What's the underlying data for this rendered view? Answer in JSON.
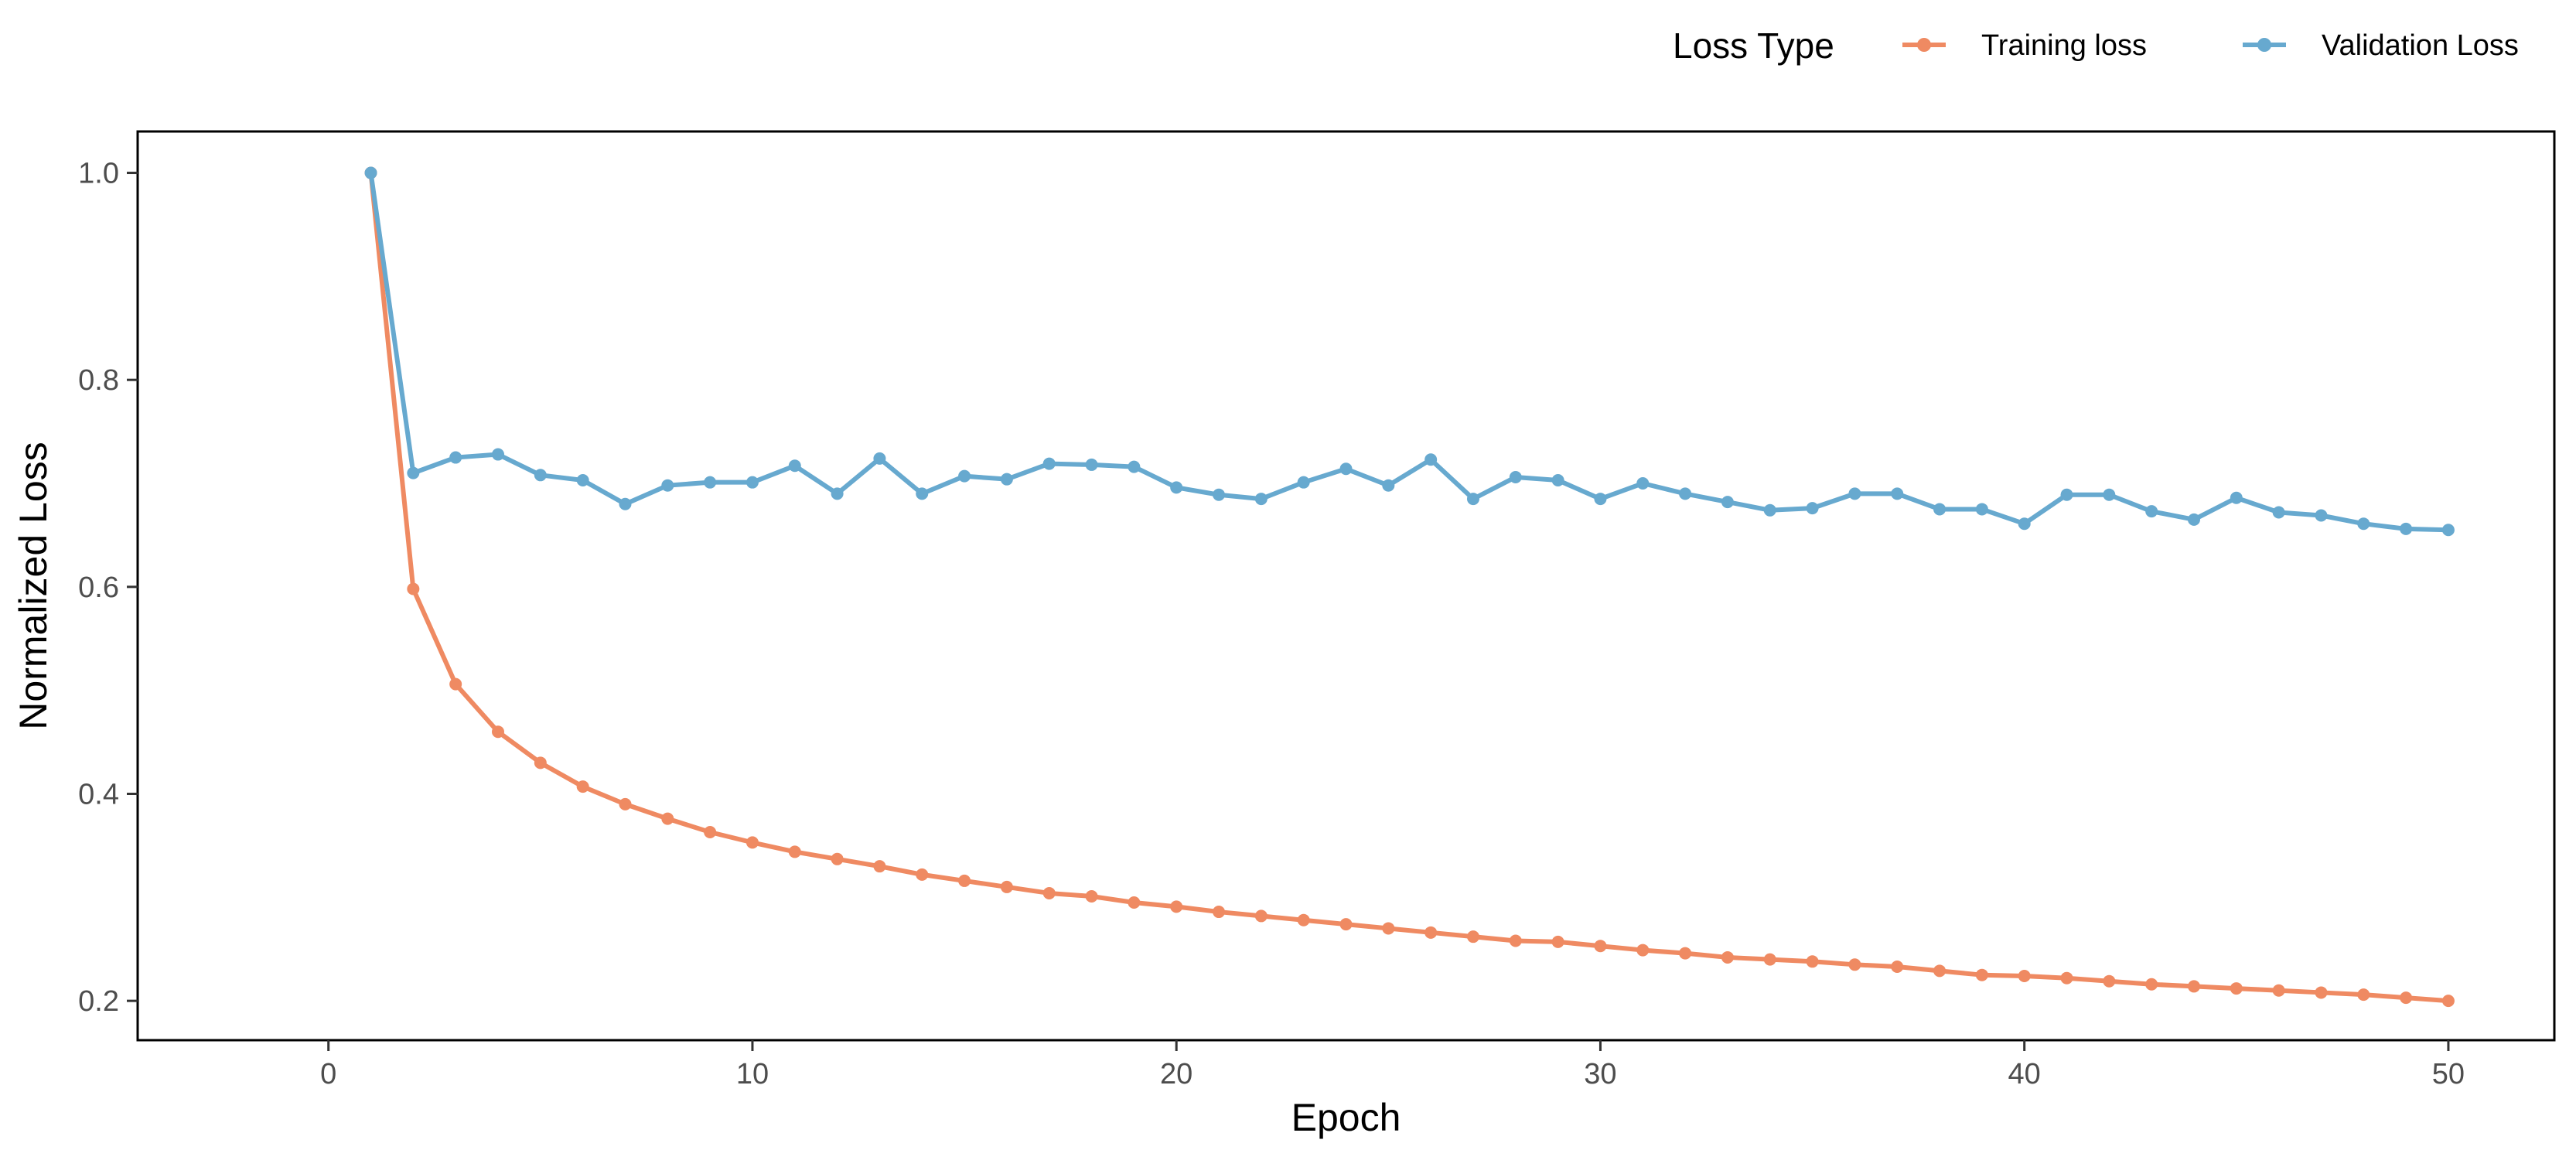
{
  "chart_data": {
    "type": "line",
    "xlabel": "Epoch",
    "ylabel": "Normalized Loss",
    "xlim": [
      -4.5,
      52.5
    ],
    "ylim": [
      0.162,
      1.04
    ],
    "xticks": [
      0,
      10,
      20,
      30,
      40,
      50
    ],
    "yticks": [
      0.2,
      0.4,
      0.6,
      0.8,
      1.0
    ],
    "xtick_labels": [
      "0",
      "10",
      "20",
      "30",
      "40",
      "50"
    ],
    "ytick_labels": [
      "0.2",
      "0.4",
      "0.6",
      "0.8",
      "1.0"
    ],
    "grid": false,
    "legend": {
      "title": "Loss Type",
      "position": "top-right"
    },
    "x": [
      1,
      2,
      3,
      4,
      5,
      6,
      7,
      8,
      9,
      10,
      11,
      12,
      13,
      14,
      15,
      16,
      17,
      18,
      19,
      20,
      21,
      22,
      23,
      24,
      25,
      26,
      27,
      28,
      29,
      30,
      31,
      32,
      33,
      34,
      35,
      36,
      37,
      38,
      39,
      40,
      41,
      42,
      43,
      44,
      45,
      46,
      47,
      48,
      49,
      50
    ],
    "series": [
      {
        "name": "Training loss",
        "color": "#EF8A62",
        "values": [
          1.0,
          0.598,
          0.506,
          0.46,
          0.43,
          0.407,
          0.39,
          0.376,
          0.363,
          0.353,
          0.344,
          0.337,
          0.33,
          0.322,
          0.316,
          0.31,
          0.304,
          0.301,
          0.295,
          0.291,
          0.286,
          0.282,
          0.278,
          0.274,
          0.27,
          0.266,
          0.262,
          0.258,
          0.257,
          0.253,
          0.249,
          0.246,
          0.242,
          0.24,
          0.238,
          0.235,
          0.233,
          0.229,
          0.225,
          0.224,
          0.222,
          0.219,
          0.216,
          0.214,
          0.212,
          0.21,
          0.208,
          0.206,
          0.203,
          0.2
        ]
      },
      {
        "name": "Validation Loss",
        "color": "#67A9CF",
        "values": [
          1.0,
          0.71,
          0.725,
          0.728,
          0.708,
          0.703,
          0.68,
          0.698,
          0.701,
          0.701,
          0.717,
          0.69,
          0.724,
          0.69,
          0.707,
          0.704,
          0.719,
          0.718,
          0.716,
          0.696,
          0.689,
          0.685,
          0.701,
          0.714,
          0.698,
          0.723,
          0.685,
          0.706,
          0.703,
          0.685,
          0.7,
          0.69,
          0.682,
          0.674,
          0.676,
          0.69,
          0.69,
          0.675,
          0.675,
          0.661,
          0.689,
          0.689,
          0.673,
          0.665,
          0.686,
          0.672,
          0.669,
          0.661,
          0.656,
          0.655
        ]
      }
    ]
  }
}
